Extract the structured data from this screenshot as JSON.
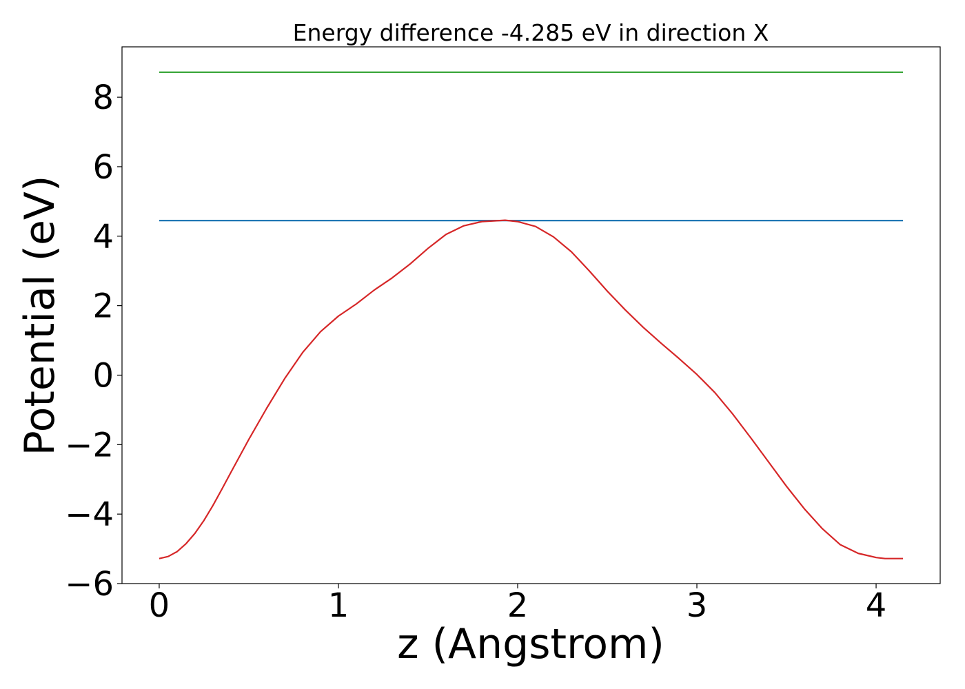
{
  "chart_data": {
    "type": "line",
    "title": "Energy difference -4.285 eV in direction X",
    "xlabel": "z (Angstrom)",
    "ylabel": "Potential (eV)",
    "xlim": [
      -0.2075,
      4.3575
    ],
    "ylim": [
      -6,
      9.45
    ],
    "xticks": [
      0,
      1,
      2,
      3,
      4
    ],
    "yticks": [
      -6,
      -4,
      -2,
      0,
      2,
      4,
      6,
      8
    ],
    "xtick_labels": [
      "0",
      "1",
      "2",
      "3",
      "4"
    ],
    "ytick_labels": [
      "−6",
      "−4",
      "−2",
      "0",
      "2",
      "4",
      "6",
      "8"
    ],
    "grid": false,
    "series": [
      {
        "color": "#2ca02c",
        "x": [
          0,
          4.15
        ],
        "y": [
          8.72,
          8.72
        ]
      },
      {
        "color": "#1f77b4",
        "x": [
          0,
          4.15
        ],
        "y": [
          4.45,
          4.45
        ]
      },
      {
        "color": "#d62728",
        "x": [
          0,
          0.05,
          0.1,
          0.15,
          0.2,
          0.25,
          0.3,
          0.35,
          0.4,
          0.5,
          0.6,
          0.7,
          0.8,
          0.9,
          1.0,
          1.1,
          1.2,
          1.3,
          1.4,
          1.5,
          1.6,
          1.7,
          1.8,
          1.9,
          1.93,
          2.0,
          2.1,
          2.2,
          2.3,
          2.4,
          2.5,
          2.6,
          2.7,
          2.8,
          2.9,
          3.0,
          3.1,
          3.2,
          3.3,
          3.4,
          3.5,
          3.6,
          3.7,
          3.8,
          3.9,
          4.0,
          4.05,
          4.1,
          4.15
        ],
        "y": [
          -5.28,
          -5.22,
          -5.08,
          -4.85,
          -4.55,
          -4.18,
          -3.75,
          -3.28,
          -2.8,
          -1.85,
          -0.95,
          -0.1,
          0.65,
          1.25,
          1.7,
          2.05,
          2.45,
          2.8,
          3.2,
          3.65,
          4.05,
          4.3,
          4.42,
          4.45,
          4.46,
          4.42,
          4.28,
          3.98,
          3.55,
          3.0,
          2.42,
          1.88,
          1.38,
          0.92,
          0.48,
          0.02,
          -0.5,
          -1.12,
          -1.8,
          -2.5,
          -3.2,
          -3.85,
          -4.42,
          -4.88,
          -5.13,
          -5.25,
          -5.28,
          -5.28,
          -5.28
        ]
      }
    ]
  }
}
